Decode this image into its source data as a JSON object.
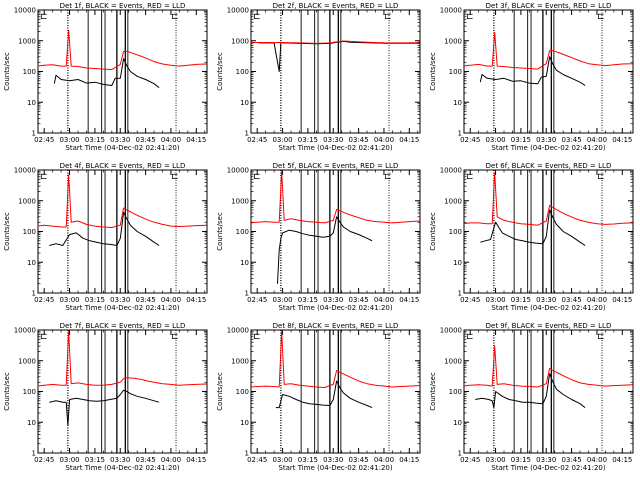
{
  "chart_data": {
    "type": "line",
    "x_start_label": "Start Time (04-Dec-02 02:41:20)",
    "ylabel": "Counts/sec",
    "y_scale": "log",
    "ylim": [
      1,
      10000
    ],
    "y_tick_labels": [
      "1",
      "10",
      "100",
      "1000",
      "10000"
    ],
    "x_tick_labels": [
      "02:45",
      "03:00",
      "03:15",
      "03:30",
      "03:45",
      "04:00",
      "04:15"
    ],
    "x_tick_minutes": [
      165,
      180,
      195,
      210,
      225,
      240,
      255
    ],
    "xlim_minutes": [
      161.33,
      261.33
    ],
    "vertical_markers_minutes": [
      179,
      191,
      199,
      201,
      208,
      213,
      214.5,
      243
    ],
    "time_key_note": "x values are minutes after midnight UT",
    "corner_symbol": "⊏",
    "series_colors": {
      "events": "#000000",
      "lld": "#ff0000"
    },
    "panels": [
      {
        "title": "Det 1f, BLACK = Events, RED = LLD",
        "series": [
          {
            "name": "Events",
            "color": "#000000",
            "x": [
              171,
              172,
              175,
              180,
              185,
              190,
              195,
              200,
              205,
              207,
              210,
              212,
              214,
              216,
              220,
              225,
              230,
              233
            ],
            "y": [
              40,
              75,
              55,
              50,
              55,
              42,
              45,
              38,
              35,
              60,
              60,
              260,
              150,
              100,
              70,
              55,
              40,
              30
            ]
          },
          {
            "name": "LLD",
            "color": "#ff0000",
            "x": [
              161,
              165,
              170,
              175,
              178,
              179.5,
              181,
              185,
              190,
              195,
              200,
              205,
              210,
              212,
              214,
              218,
              222,
              226,
              230,
              235,
              240,
              245,
              250,
              255,
              261
            ],
            "y": [
              150,
              160,
              165,
              150,
              150,
              2200,
              150,
              145,
              130,
              125,
              120,
              115,
              170,
              450,
              450,
              380,
              320,
              260,
              210,
              175,
              160,
              150,
              160,
              170,
              175
            ]
          }
        ]
      },
      {
        "title": "Det 2f, BLACK = Events, RED = LLD",
        "series": [
          {
            "name": "Events",
            "color": "#000000",
            "x": [
              166,
              170,
              175,
              178,
              179,
              180,
              182,
              190,
              200,
              208,
              212,
              216,
              220,
              230,
              240,
              250,
              260
            ],
            "y": [
              850,
              850,
              850,
              100,
              900,
              850,
              850,
              820,
              800,
              820,
              900,
              950,
              900,
              860,
              830,
              830,
              830
            ]
          },
          {
            "name": "LLD",
            "color": "#ff0000",
            "x": [
              161,
              170,
              180,
              190,
              200,
              208,
              212,
              216,
              220,
              230,
              240,
              250,
              261
            ],
            "y": [
              880,
              880,
              880,
              850,
              820,
              850,
              920,
              980,
              950,
              900,
              860,
              850,
              860
            ]
          }
        ]
      },
      {
        "title": "Det 3f, BLACK = Events, RED = LLD",
        "series": [
          {
            "name": "Events",
            "color": "#000000",
            "x": [
              171,
              172,
              175,
              180,
              185,
              190,
              195,
              200,
              205,
              207,
              210,
              212,
              214,
              216,
              220,
              225,
              230,
              233
            ],
            "y": [
              45,
              80,
              60,
              55,
              60,
              48,
              50,
              42,
              40,
              65,
              70,
              300,
              170,
              110,
              80,
              60,
              45,
              35
            ]
          },
          {
            "name": "LLD",
            "color": "#ff0000",
            "x": [
              161,
              165,
              170,
              175,
              178,
              179.5,
              181,
              185,
              190,
              195,
              200,
              205,
              210,
              212,
              214,
              218,
              222,
              226,
              230,
              235,
              240,
              245,
              250,
              255,
              261
            ],
            "y": [
              150,
              160,
              170,
              150,
              150,
              1900,
              150,
              145,
              135,
              130,
              125,
              120,
              180,
              480,
              470,
              400,
              330,
              270,
              220,
              180,
              165,
              155,
              165,
              175,
              180
            ]
          }
        ]
      },
      {
        "title": "Det 4f, BLACK = Events, RED = LLD",
        "series": [
          {
            "name": "Events",
            "color": "#000000",
            "x": [
              168,
              172,
              176,
              180,
              184,
              188,
              192,
              196,
              200,
              204,
              208,
              210,
              212,
              214,
              216,
              220,
              225,
              230,
              233
            ],
            "y": [
              35,
              40,
              35,
              80,
              90,
              60,
              50,
              45,
              40,
              38,
              35,
              60,
              420,
              250,
              160,
              100,
              70,
              45,
              35
            ]
          },
          {
            "name": "LLD",
            "color": "#ff0000",
            "x": [
              161,
              165,
              170,
              175,
              178,
              179.5,
              181,
              185,
              190,
              195,
              200,
              205,
              210,
              212,
              214,
              218,
              222,
              226,
              230,
              235,
              240,
              245,
              250,
              255,
              261
            ],
            "y": [
              150,
              160,
              150,
              140,
              140,
              7000,
              200,
              220,
              170,
              150,
              140,
              135,
              160,
              580,
              500,
              380,
              300,
              240,
              200,
              170,
              150,
              145,
              150,
              155,
              160
            ]
          }
        ]
      },
      {
        "title": "Det 5f, BLACK = Events, RED = LLD",
        "series": [
          {
            "name": "Events",
            "color": "#000000",
            "x": [
              177,
              178,
              179,
              180,
              184,
              188,
              192,
              196,
              200,
              204,
              208,
              210,
              212,
              214,
              216,
              220,
              225,
              230,
              233
            ],
            "y": [
              2,
              25,
              60,
              90,
              110,
              100,
              85,
              75,
              70,
              65,
              70,
              90,
              300,
              200,
              140,
              100,
              80,
              60,
              50
            ]
          },
          {
            "name": "LLD",
            "color": "#ff0000",
            "x": [
              161,
              165,
              170,
              175,
              178,
              179.5,
              181,
              185,
              190,
              195,
              200,
              205,
              210,
              212,
              214,
              218,
              222,
              226,
              230,
              235,
              240,
              245,
              250,
              255,
              261
            ],
            "y": [
              190,
              200,
              210,
              200,
              200,
              9000,
              230,
              260,
              230,
              210,
              200,
              190,
              230,
              520,
              470,
              380,
              320,
              270,
              230,
              210,
              200,
              190,
              200,
              210,
              220
            ]
          }
        ]
      },
      {
        "title": "Det 6f, BLACK = Events, RED = LLD",
        "series": [
          {
            "name": "Events",
            "color": "#000000",
            "x": [
              171,
              174,
              177,
              180,
              184,
              188,
              192,
              196,
              200,
              204,
              208,
              210,
              212,
              214,
              216,
              220,
              225,
              230,
              233
            ],
            "y": [
              45,
              50,
              55,
              200,
              90,
              70,
              55,
              50,
              45,
              42,
              40,
              70,
              500,
              280,
              170,
              100,
              70,
              45,
              35
            ]
          },
          {
            "name": "LLD",
            "color": "#ff0000",
            "x": [
              161,
              165,
              170,
              175,
              178,
              179.5,
              181,
              185,
              190,
              195,
              200,
              205,
              210,
              212,
              214,
              218,
              222,
              226,
              230,
              235,
              240,
              245,
              250,
              255,
              261
            ],
            "y": [
              180,
              190,
              190,
              180,
              180,
              8000,
              300,
              230,
              200,
              180,
              170,
              160,
              220,
              700,
              600,
              450,
              350,
              280,
              230,
              200,
              180,
              170,
              175,
              185,
              190
            ]
          }
        ]
      },
      {
        "title": "Det 7f, BLACK = Events, RED = LLD",
        "series": [
          {
            "name": "Events",
            "color": "#000000",
            "x": [
              168,
              172,
              176,
              178,
              179,
              180,
              184,
              188,
              192,
              196,
              200,
              204,
              208,
              210,
              212,
              214,
              216,
              220,
              225,
              230,
              233
            ],
            "y": [
              45,
              50,
              45,
              45,
              8,
              55,
              60,
              55,
              50,
              48,
              50,
              55,
              60,
              80,
              110,
              100,
              85,
              70,
              60,
              50,
              45
            ]
          },
          {
            "name": "LLD",
            "color": "#ff0000",
            "x": [
              161,
              165,
              170,
              175,
              178,
              179.5,
              181,
              185,
              190,
              195,
              200,
              205,
              210,
              212,
              214,
              218,
              222,
              226,
              230,
              235,
              240,
              245,
              250,
              255,
              261
            ],
            "y": [
              150,
              160,
              170,
              160,
              160,
              9000,
              180,
              190,
              170,
              160,
              160,
              170,
              200,
              260,
              280,
              270,
              250,
              220,
              200,
              180,
              170,
              160,
              165,
              170,
              175
            ]
          }
        ]
      },
      {
        "title": "Det 8f, BLACK = Events, RED = LLD",
        "series": [
          {
            "name": "Events",
            "color": "#000000",
            "x": [
              176,
              178,
              179,
              180,
              184,
              188,
              192,
              196,
              200,
              204,
              208,
              210,
              212,
              214,
              216,
              220,
              225,
              230,
              233
            ],
            "y": [
              30,
              30,
              50,
              80,
              70,
              55,
              45,
              40,
              38,
              36,
              35,
              55,
              220,
              130,
              90,
              60,
              45,
              35,
              30
            ]
          },
          {
            "name": "LLD",
            "color": "#ff0000",
            "x": [
              161,
              165,
              170,
              175,
              178,
              179.5,
              181,
              185,
              190,
              195,
              200,
              205,
              210,
              212,
              214,
              218,
              222,
              226,
              230,
              235,
              240,
              245,
              250,
              255,
              261
            ],
            "y": [
              140,
              145,
              150,
              145,
              140,
              9000,
              170,
              180,
              160,
              150,
              140,
              135,
              170,
              480,
              420,
              330,
              260,
              210,
              180,
              160,
              150,
              140,
              145,
              150,
              155
            ]
          }
        ]
      },
      {
        "title": "Det 9f, BLACK = Events, RED = LLD",
        "series": [
          {
            "name": "Events",
            "color": "#000000",
            "x": [
              168,
              172,
              176,
              178,
              179,
              180,
              184,
              188,
              192,
              196,
              200,
              204,
              208,
              210,
              212,
              214,
              216,
              220,
              225,
              230,
              233
            ],
            "y": [
              55,
              60,
              55,
              50,
              30,
              100,
              70,
              55,
              50,
              45,
              45,
              42,
              40,
              70,
              380,
              200,
              120,
              80,
              55,
              40,
              30
            ]
          },
          {
            "name": "LLD",
            "color": "#ff0000",
            "x": [
              161,
              165,
              170,
              175,
              178,
              179.5,
              181,
              185,
              190,
              195,
              200,
              205,
              210,
              212,
              214,
              218,
              222,
              226,
              230,
              235,
              240,
              245,
              250,
              255,
              261
            ],
            "y": [
              150,
              160,
              165,
              160,
              150,
              3000,
              170,
              180,
              160,
              150,
              145,
              140,
              180,
              560,
              480,
              370,
              290,
              230,
              190,
              170,
              160,
              150,
              155,
              160,
              165
            ]
          }
        ]
      }
    ]
  }
}
